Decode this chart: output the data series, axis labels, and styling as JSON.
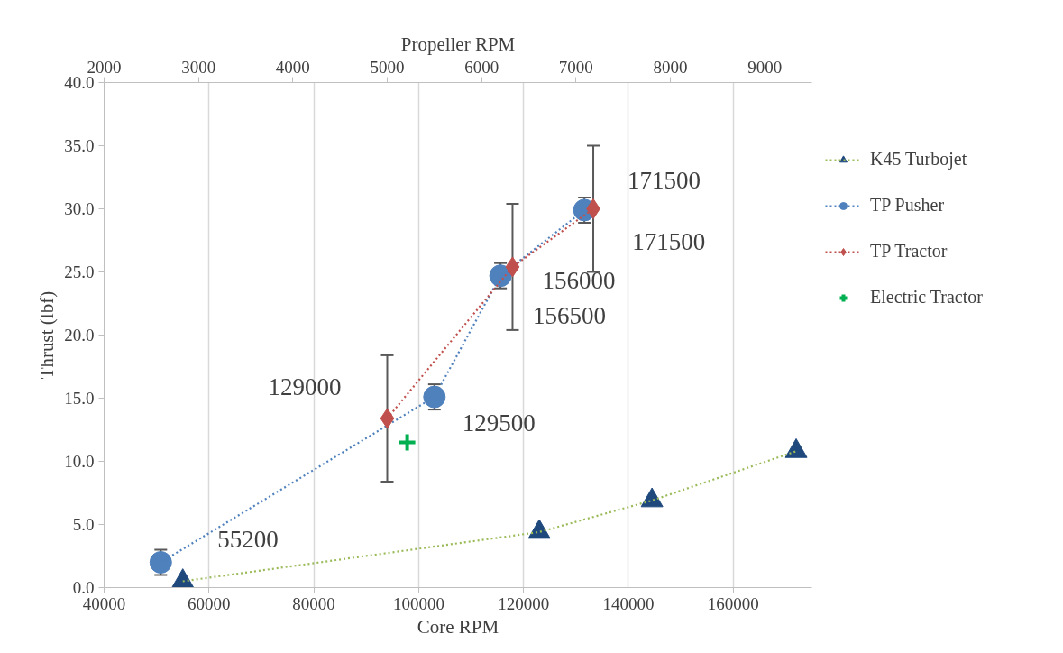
{
  "chart_data": {
    "type": "line",
    "xlabel": "Core RPM",
    "ylabel": "Thrust (lbf)",
    "x2label": "Propeller RPM",
    "xlim": [
      40000,
      175000
    ],
    "xticks": [
      40000,
      60000,
      80000,
      100000,
      120000,
      140000,
      160000
    ],
    "x2lim": [
      2000,
      9500
    ],
    "x2ticks": [
      2000,
      3000,
      4000,
      5000,
      6000,
      7000,
      8000,
      9000
    ],
    "ylim": [
      0,
      40
    ],
    "yticks": [
      {
        "value": 0,
        "label": "0.0"
      },
      {
        "value": 5,
        "label": "5.0"
      },
      {
        "value": 10,
        "label": "10.0"
      },
      {
        "value": 15,
        "label": "15.0"
      },
      {
        "value": 20,
        "label": "20.0"
      },
      {
        "value": 25,
        "label": "25.0"
      },
      {
        "value": 30,
        "label": "30.0"
      },
      {
        "value": 35,
        "label": "35.0"
      },
      {
        "value": 40,
        "label": "40.0"
      }
    ],
    "grid": "x",
    "legend": "right",
    "line_style": "dotted",
    "series": [
      {
        "name": "K45 Turbojet",
        "color": "#1f497d",
        "marker": "triangle",
        "x": [
          55000,
          123000,
          144500,
          172000
        ],
        "values": [
          0.5,
          4.4,
          6.9,
          10.8
        ]
      },
      {
        "name": "TP Pusher",
        "color": "#4f81bd",
        "marker": "circle",
        "x": [
          50800,
          103000,
          115600,
          131600
        ],
        "values": [
          2.0,
          15.1,
          24.7,
          29.9
        ],
        "errors": [
          1.0,
          1.0,
          1.0,
          1.0
        ]
      },
      {
        "name": "TP Tractor",
        "color": "#c0504d",
        "marker": "diamond",
        "x": [
          94000,
          117900,
          133300
        ],
        "values": [
          13.4,
          25.4,
          30.0
        ],
        "errors": [
          5.0,
          5.0,
          5.0
        ]
      },
      {
        "name": "Electric Tractor",
        "type": "scatter",
        "color": "#00b050",
        "marker": "cross",
        "x": [
          97800
        ],
        "values": [
          11.5
        ]
      }
    ],
    "annotations": [
      {
        "text": "55200",
        "x": 50800,
        "y": 2.0
      },
      {
        "text": "129500",
        "x": 103000,
        "y": 15.1
      },
      {
        "text": "156500",
        "x": 115600,
        "y": 24.7
      },
      {
        "text": "171500",
        "x": 131600,
        "y": 29.9
      },
      {
        "text": "129000",
        "x": 94000,
        "y": 13.4
      },
      {
        "text": "156000",
        "x": 117900,
        "y": 25.4
      },
      {
        "text": "171500",
        "x": 133300,
        "y": 30.0
      }
    ]
  }
}
